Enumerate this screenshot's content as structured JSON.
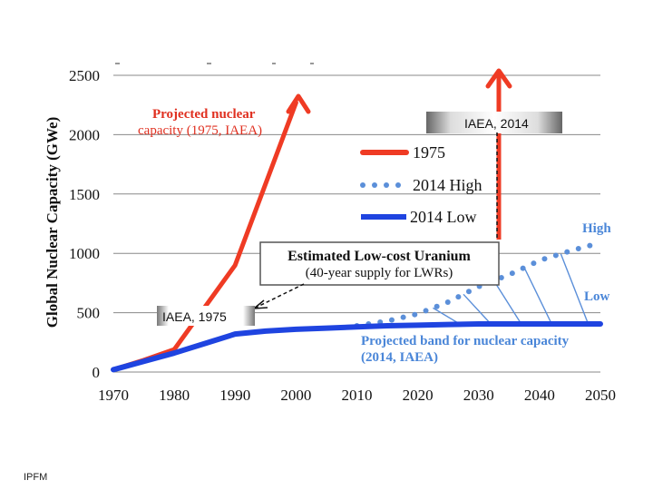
{
  "footer": "IPFM",
  "chart_data": {
    "type": "line",
    "title": "",
    "xlabel": "",
    "ylabel": "Global Nuclear Capacity (GWe)",
    "xlim": [
      1970,
      2050
    ],
    "ylim": [
      0,
      2500
    ],
    "x_ticks": [
      1970,
      1980,
      1990,
      2000,
      2010,
      2020,
      2030,
      2040,
      2050
    ],
    "y_ticks": [
      0,
      500,
      1000,
      1500,
      2000,
      2500
    ],
    "grid": true,
    "series": [
      {
        "name": "1975",
        "style": "solid",
        "color": "#ef3b24",
        "x": [
          1970,
          1975,
          1980,
          1990,
          2000
        ],
        "y": [
          20,
          100,
          190,
          900,
          2270
        ]
      },
      {
        "name": "2014 High",
        "style": "dotted",
        "color": "#5b8fd9",
        "x": [
          2010,
          2015,
          2020,
          2025,
          2030,
          2035,
          2040,
          2045,
          2050
        ],
        "y": [
          390,
          430,
          490,
          590,
          720,
          820,
          940,
          1020,
          1090
        ]
      },
      {
        "name": "2014 Low",
        "style": "solid",
        "color": "#1f44e0",
        "x": [
          1970,
          1975,
          1980,
          1985,
          1990,
          1995,
          2000,
          2005,
          2010,
          2015,
          2020,
          2025,
          2030,
          2035,
          2040,
          2045,
          2050
        ],
        "y": [
          20,
          90,
          160,
          240,
          320,
          345,
          360,
          370,
          380,
          390,
          395,
          400,
          405,
          405,
          405,
          405,
          405
        ]
      }
    ],
    "annotations": {
      "red_title": "Projected nuclear",
      "red_sub": "capacity (1975, IAEA)",
      "legend": [
        "1975",
        "2014 High",
        "2014 Low"
      ],
      "iaea_2014": "IAEA, 2014",
      "iaea_1975": "IAEA, 1975",
      "uranium_title": "Estimated Low-cost Uranium",
      "uranium_sub": "(40-year supply for LWRs)",
      "high_label": "High",
      "low_label": "Low",
      "band_line1": "Projected band for nuclear capacity",
      "band_line2": "(2014, IAEA)"
    }
  }
}
